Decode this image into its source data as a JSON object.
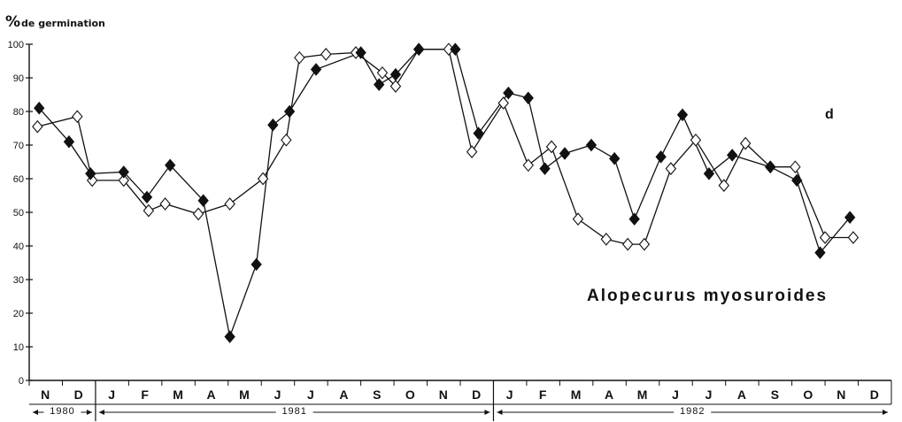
{
  "chart_data": {
    "type": "line",
    "ylabel_symbol": "%",
    "ylabel_text": "de germination",
    "panel_letter": "d",
    "annotation": "Alopecurus myosuroides",
    "ylim": [
      0,
      100
    ],
    "yticks": [
      "0",
      "10",
      "20",
      "30",
      "40",
      "50",
      "60",
      "70",
      "80",
      "90",
      "100"
    ],
    "months": [
      "N",
      "D",
      "J",
      "F",
      "M",
      "A",
      "M",
      "J",
      "J",
      "A",
      "S",
      "O",
      "N",
      "D",
      "J",
      "F",
      "M",
      "A",
      "M",
      "J",
      "J",
      "A",
      "S",
      "O",
      "N",
      "D"
    ],
    "years": [
      {
        "label": "1980",
        "from": 0,
        "to": 2
      },
      {
        "label": "1981",
        "from": 2,
        "to": 14
      },
      {
        "label": "1982",
        "from": 14,
        "to": 26
      }
    ],
    "x_range": [
      0,
      26
    ],
    "series": [
      {
        "marker": "filled-diamond",
        "points": [
          [
            0.3,
            81
          ],
          [
            1.2,
            71
          ],
          [
            1.85,
            61.5
          ],
          [
            2.85,
            62
          ],
          [
            3.55,
            54.5
          ],
          [
            4.25,
            64
          ],
          [
            5.25,
            53.5
          ],
          [
            6.05,
            13
          ],
          [
            6.85,
            34.5
          ],
          [
            7.35,
            76
          ],
          [
            7.85,
            80
          ],
          [
            8.65,
            92.5
          ],
          [
            10.0,
            97.5
          ],
          [
            10.55,
            88
          ],
          [
            11.05,
            91
          ],
          [
            11.75,
            98.5
          ],
          [
            12.85,
            98.5
          ],
          [
            13.55,
            73.5
          ],
          [
            14.45,
            85.5
          ],
          [
            15.05,
            84
          ],
          [
            15.55,
            63
          ],
          [
            16.15,
            67.5
          ],
          [
            16.95,
            70
          ],
          [
            17.65,
            66
          ],
          [
            18.25,
            48
          ],
          [
            19.05,
            66.5
          ],
          [
            19.7,
            79
          ],
          [
            20.5,
            61.5
          ],
          [
            21.2,
            67
          ],
          [
            22.35,
            63.5
          ],
          [
            23.15,
            59.5
          ],
          [
            23.85,
            38
          ],
          [
            24.75,
            48.5
          ]
        ]
      },
      {
        "marker": "open-diamond",
        "points": [
          [
            0.25,
            75.5
          ],
          [
            1.45,
            78.5
          ],
          [
            1.9,
            59.5
          ],
          [
            2.85,
            59.5
          ],
          [
            3.6,
            50.5
          ],
          [
            4.1,
            52.5
          ],
          [
            5.1,
            49.5
          ],
          [
            6.05,
            52.5
          ],
          [
            7.05,
            60
          ],
          [
            7.75,
            71.5
          ],
          [
            8.15,
            96
          ],
          [
            8.95,
            97
          ],
          [
            9.85,
            97.5
          ],
          [
            10.65,
            91.5
          ],
          [
            11.05,
            87.5
          ],
          [
            11.75,
            98.5
          ],
          [
            12.65,
            98.5
          ],
          [
            13.35,
            68
          ],
          [
            14.3,
            82.5
          ],
          [
            15.05,
            64
          ],
          [
            15.75,
            69.5
          ],
          [
            16.55,
            48
          ],
          [
            17.4,
            42
          ],
          [
            18.05,
            40.5
          ],
          [
            18.55,
            40.5
          ],
          [
            19.35,
            63
          ],
          [
            20.1,
            71.5
          ],
          [
            20.95,
            58
          ],
          [
            21.6,
            70.5
          ],
          [
            22.35,
            63.5
          ],
          [
            23.1,
            63.5
          ],
          [
            24.0,
            42.5
          ],
          [
            24.85,
            42.5
          ]
        ]
      }
    ]
  }
}
